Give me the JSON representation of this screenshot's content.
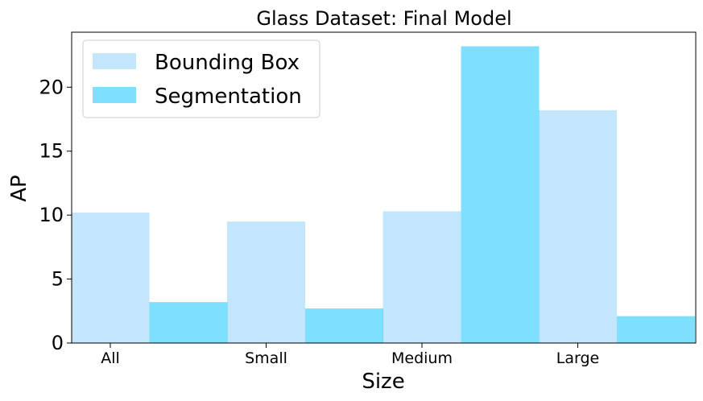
{
  "chart_data": {
    "type": "bar",
    "title": "Glass Dataset: Final Model",
    "xlabel": "Size",
    "ylabel": "AP",
    "categories": [
      "All",
      "Small",
      "Medium",
      "Large"
    ],
    "series": [
      {
        "name": "Bounding Box",
        "values": [
          10.2,
          9.5,
          10.3,
          18.2
        ],
        "color": "#87cefa"
      },
      {
        "name": "Segmentation",
        "values": [
          3.2,
          2.7,
          23.2,
          2.1
        ],
        "color": "#00bfff"
      }
    ],
    "yticks": [
      "0",
      "5",
      "10",
      "15",
      "20"
    ],
    "ylim": [
      0,
      24.3
    ],
    "legend_position": "top-left",
    "grid": false
  }
}
